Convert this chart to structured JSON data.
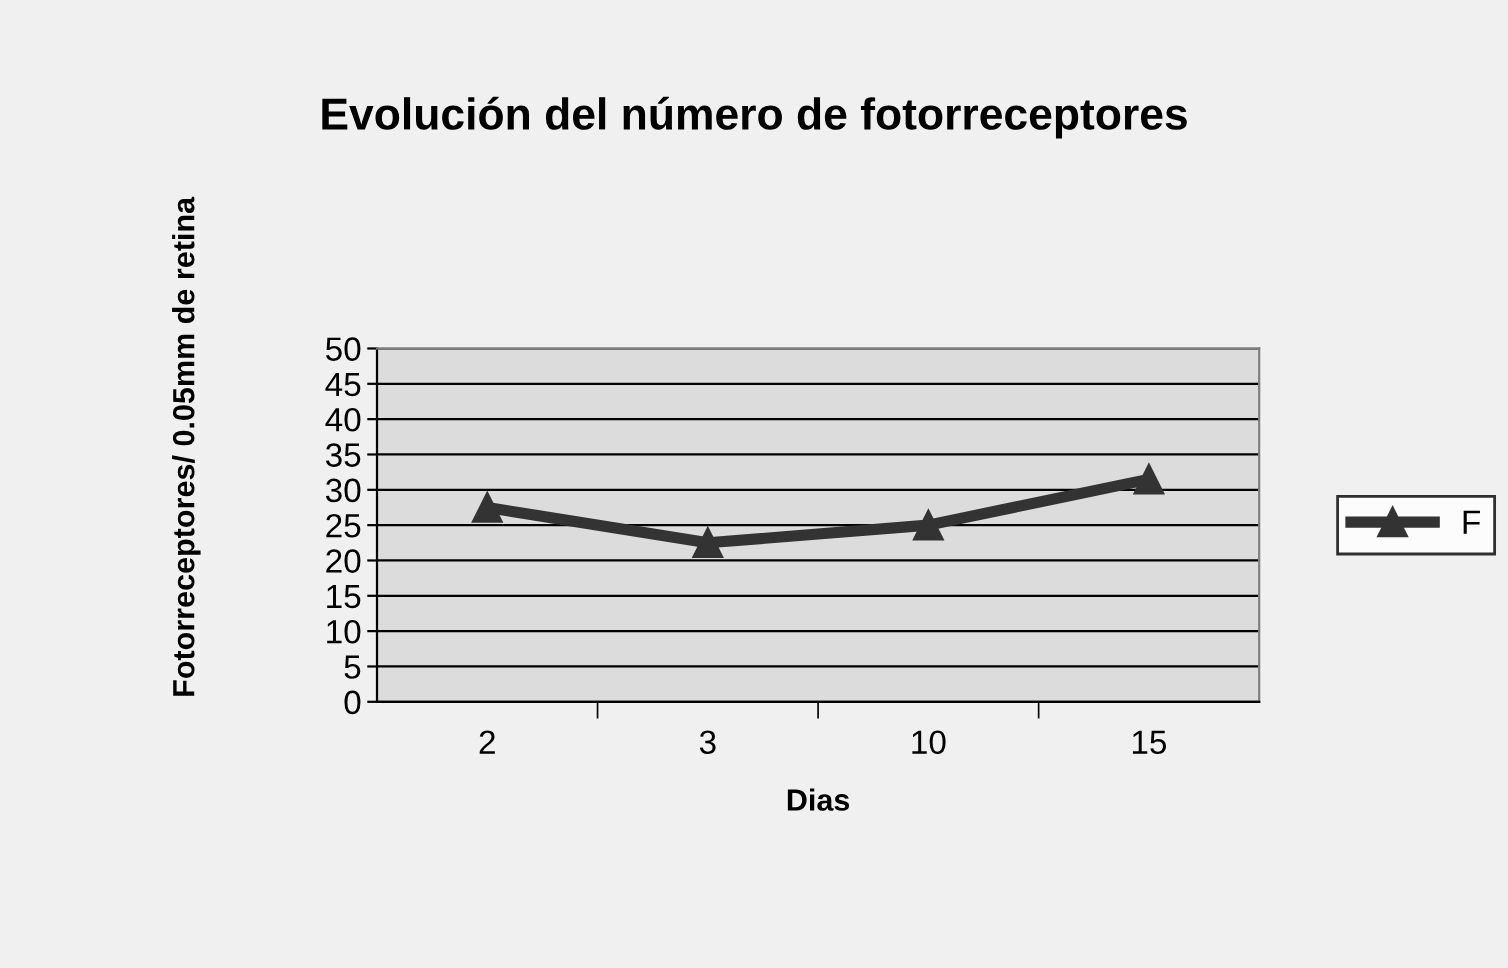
{
  "chart_data": {
    "type": "line",
    "title": "Evolución del número de fotorreceptores",
    "xlabel": "Dias",
    "ylabel": "Fotorreceptores/ 0.05mm de retina",
    "categories": [
      "2",
      "3",
      "10",
      "15"
    ],
    "series": [
      {
        "name": "F",
        "color": "#333333",
        "values": [
          27.5,
          22.5,
          25,
          31.5
        ]
      }
    ],
    "ylim": [
      0,
      50
    ],
    "yticks": [
      0,
      5,
      10,
      15,
      20,
      25,
      30,
      35,
      40,
      45,
      50
    ],
    "grid": "y",
    "legend": "right",
    "marker": "triangle",
    "line_style": "solid"
  }
}
